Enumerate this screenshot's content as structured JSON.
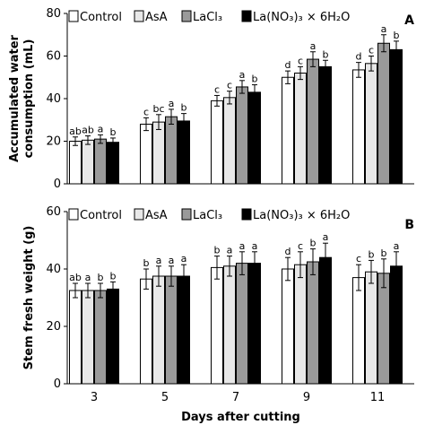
{
  "chart_data": [
    {
      "type": "bar",
      "panel_label": "A",
      "categories": [
        "3",
        "5",
        "7",
        "9",
        "11"
      ],
      "xlabel": "",
      "ylabel": "Accumulated water consumption (mL)",
      "ylabel_lines": [
        "Accumulated water",
        "consumption (mL)"
      ],
      "ylim": [
        0,
        80
      ],
      "yticks": [
        "0",
        "20",
        "40",
        "60",
        "80"
      ],
      "legend": [
        "Control",
        "AsA",
        "LaCl₃",
        "La(NO₃)₃ × 6H₂O"
      ],
      "legend_placement": "top",
      "series": [
        {
          "name": "Control",
          "color": "#ffffff",
          "values": [
            20,
            28,
            39,
            50,
            53.5
          ],
          "errors": [
            2,
            3,
            2.5,
            3,
            3.5
          ],
          "letters": [
            "ab",
            "c",
            "c",
            "d",
            "d"
          ]
        },
        {
          "name": "AsA",
          "color": "#e8e8e8",
          "values": [
            20.5,
            29,
            40.5,
            52,
            56.5
          ],
          "errors": [
            2,
            3.5,
            3,
            3,
            3.5
          ],
          "letters": [
            "ab",
            "bc",
            "c",
            "c",
            "c"
          ]
        },
        {
          "name": "LaCl₃",
          "color": "#9a9a9a",
          "values": [
            21,
            31.5,
            45.5,
            58.5,
            66
          ],
          "errors": [
            2,
            3.5,
            3,
            3.5,
            4
          ],
          "letters": [
            "a",
            "a",
            "a",
            "a",
            "a"
          ]
        },
        {
          "name": "La(NO₃)₃ × 6H₂O",
          "color": "#000000",
          "values": [
            19.5,
            29.5,
            43,
            55,
            63
          ],
          "errors": [
            2,
            3.5,
            3.5,
            3,
            4
          ],
          "letters": [
            "b",
            "b",
            "b",
            "b",
            "b"
          ]
        }
      ]
    },
    {
      "type": "bar",
      "panel_label": "B",
      "categories": [
        "3",
        "5",
        "7",
        "9",
        "11"
      ],
      "xlabel": "Days after cutting",
      "ylabel": "Stem fresh weight (g)",
      "ylabel_lines": [
        "Stem fresh weight (g)"
      ],
      "ylim": [
        0,
        60
      ],
      "yticks": [
        "0",
        "20",
        "40",
        "60"
      ],
      "legend": [
        "Control",
        "AsA",
        "LaCl₃",
        "La(NO₃)₃ × 6H₂O"
      ],
      "legend_placement": "top",
      "series": [
        {
          "name": "Control",
          "color": "#ffffff",
          "values": [
            32.5,
            36.5,
            40.5,
            40,
            37
          ],
          "errors": [
            2.5,
            3.5,
            4,
            4,
            4.5
          ],
          "letters": [
            "ab",
            "b",
            "b",
            "d",
            "c"
          ]
        },
        {
          "name": "AsA",
          "color": "#e8e8e8",
          "values": [
            32.5,
            37.5,
            41,
            41.5,
            39
          ],
          "errors": [
            2.5,
            3.5,
            3.5,
            4.5,
            4
          ],
          "letters": [
            "a",
            "a",
            "a",
            "c",
            "b"
          ]
        },
        {
          "name": "LaCl₃",
          "color": "#9a9a9a",
          "values": [
            32.5,
            37.5,
            42,
            42.5,
            38.5
          ],
          "errors": [
            2.5,
            3.5,
            4,
            4.5,
            5
          ],
          "letters": [
            "b",
            "a",
            "a",
            "b",
            "b"
          ]
        },
        {
          "name": "La(NO₃)₃ × 6H₂O",
          "color": "#000000",
          "values": [
            33,
            37.5,
            42,
            44,
            41
          ],
          "errors": [
            2.5,
            4,
            4,
            5,
            5
          ],
          "letters": [
            "b",
            "a",
            "a",
            "a",
            "a"
          ]
        }
      ]
    }
  ]
}
